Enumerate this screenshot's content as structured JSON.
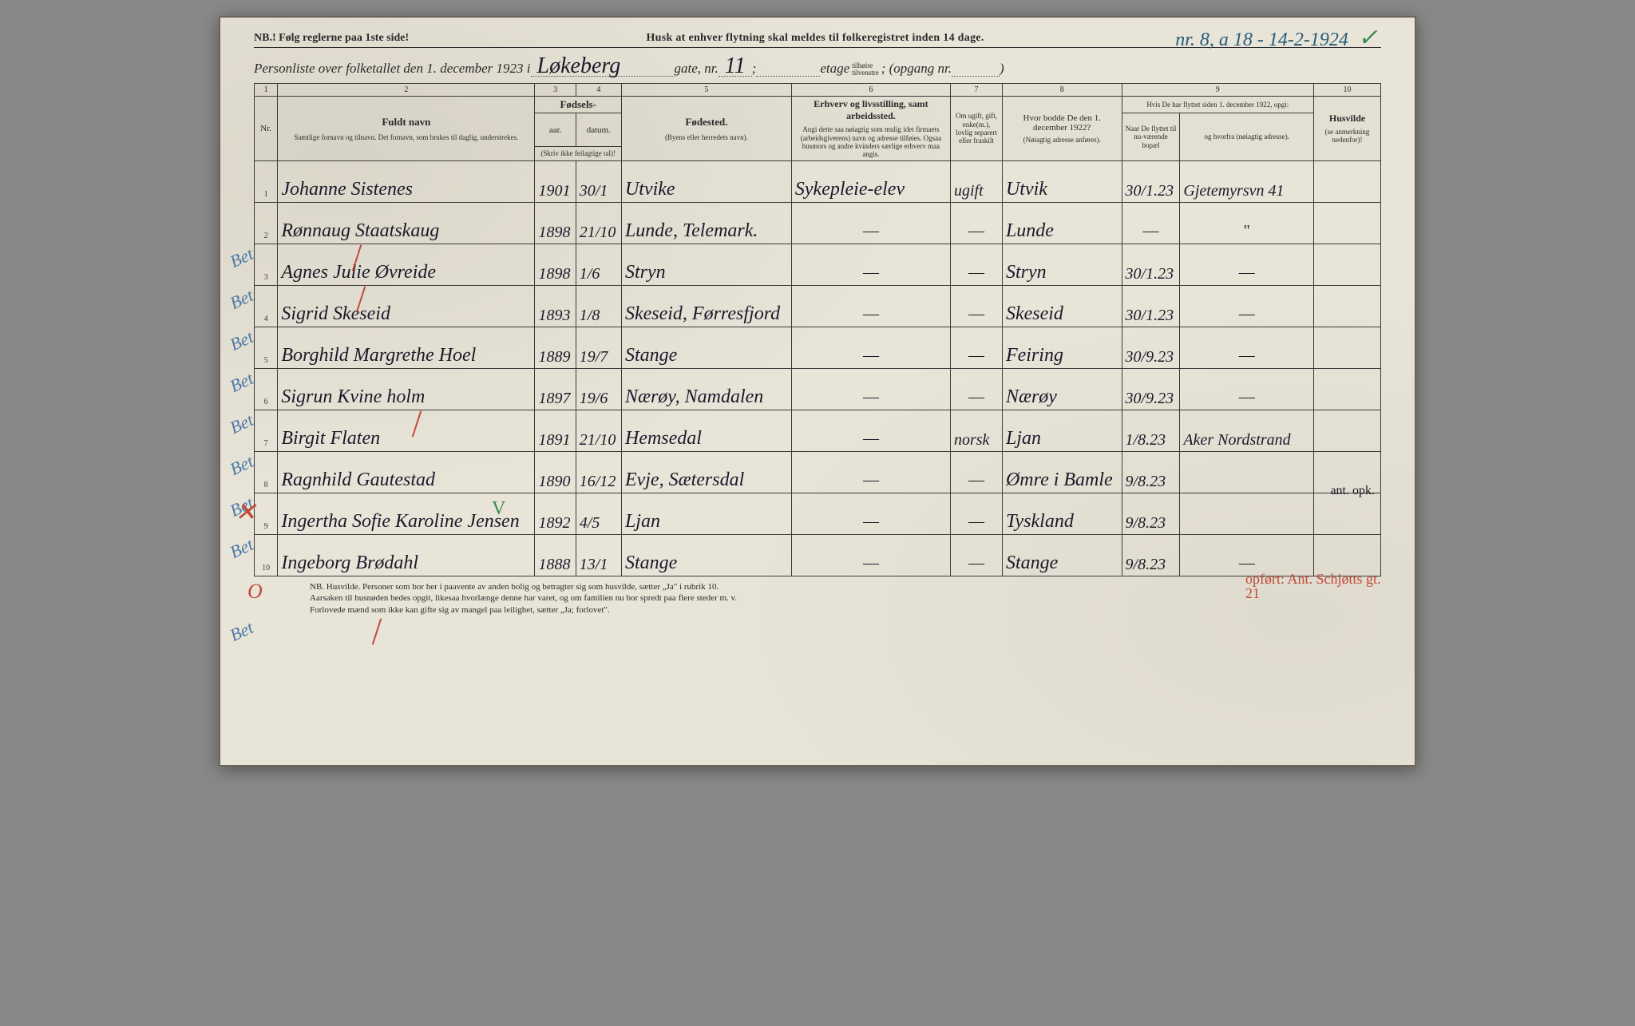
{
  "corner_annotation": "nr. 8, a 18 - 14-2-1924",
  "header": {
    "nb": "NB.! Følg reglerne paa 1ste side!",
    "husk": "Husk at enhver flytning skal meldes til folkeregistret inden 14 dage.",
    "line2_pre": "Personliste over folketallet den 1. december 1923 i",
    "gate_name": "Løkeberg",
    "gate_label": "gate, nr.",
    "gate_nr": "11",
    "semicolon": " ; ",
    "etage_label": "etage",
    "etage_side_top": "tilhøire",
    "etage_side_bot": "tilvenstre",
    "opgang_label": "; (opgang nr.",
    "opgang_close": ")"
  },
  "columns": {
    "nums": [
      "1",
      "2",
      "3",
      "4",
      "5",
      "6",
      "7",
      "8",
      "9",
      "10"
    ],
    "c1": "Nr.",
    "c2_title": "Fuldt navn",
    "c2_sub": "Samtlige fornavn og tilnavn. Det fornavn, som brukes til daglig, understrekes.",
    "c34_title": "Fødsels-",
    "c3": "aar.",
    "c4": "datum.",
    "c34_sub": "(Skriv ikke feilagtige tal)!",
    "c5_title": "Fødested.",
    "c5_sub": "(Byens eller herredets navn).",
    "c6_title": "Erhverv og livsstilling, samt arbeidssted.",
    "c6_sub": "Angi dette saa nøiagtig som mulig idet firmaets (arbeidsgiverens) navn og adresse tilføies. Ogsaa husmors og andre kvinders særlige erhverv maa angis.",
    "c7": "Om ugift, gift, enke(m.), lovlig separert eller fraskilt",
    "c8_title": "Hvor bodde De den 1. december 1922?",
    "c8_sub": "(Nøiagtig adresse anføres).",
    "c9_top": "Hvis De har flyttet siden 1. december 1922, opgi:",
    "c9a": "Naar De flyttet til nu-værende bopæl",
    "c9b": "og hvorfra (nøiagtig adresse).",
    "c10_title": "Husvilde",
    "c10_sub": "(se anmerkning nedenfor)!"
  },
  "rows": [
    {
      "nr": "1",
      "navn": "Johanne Sistenes",
      "aar": "1901",
      "dat": "30/1",
      "fsted": "Utvike",
      "erhverv": "Sykepleie-elev",
      "stand": "ugift",
      "bodde1922": "Utvik",
      "flyt_dato": "30/1.23",
      "flyt_fra": "Gjetemyrsvn 41"
    },
    {
      "nr": "2",
      "navn": "Rønnaug Staatskaug",
      "aar": "1898",
      "dat": "21/10",
      "fsted": "Lunde, Telemark.",
      "erhverv": "—",
      "stand": "—",
      "bodde1922": "Lunde",
      "flyt_dato": "—",
      "flyt_fra": "\""
    },
    {
      "nr": "3",
      "navn": "Agnes Julie Øvreide",
      "aar": "1898",
      "dat": "1/6",
      "fsted": "Stryn",
      "erhverv": "—",
      "stand": "—",
      "bodde1922": "Stryn",
      "flyt_dato": "30/1.23",
      "flyt_fra": "—"
    },
    {
      "nr": "4",
      "navn": "Sigrid Skeseid",
      "aar": "1893",
      "dat": "1/8",
      "fsted": "Skeseid, Førresfjord",
      "erhverv": "—",
      "stand": "—",
      "bodde1922": "Skeseid",
      "flyt_dato": "30/1.23",
      "flyt_fra": "—"
    },
    {
      "nr": "5",
      "navn": "Borghild Margrethe Hoel",
      "aar": "1889",
      "dat": "19/7",
      "fsted": "Stange",
      "erhverv": "—",
      "stand": "—",
      "bodde1922": "Feiring",
      "flyt_dato": "30/9.23",
      "flyt_fra": "—"
    },
    {
      "nr": "6",
      "navn": "Sigrun Kvine holm",
      "aar": "1897",
      "dat": "19/6",
      "fsted": "Nærøy, Namdalen",
      "erhverv": "—",
      "stand": "—",
      "bodde1922": "Nærøy",
      "flyt_dato": "30/9.23",
      "flyt_fra": "—"
    },
    {
      "nr": "7",
      "navn": "Birgit Flaten",
      "aar": "1891",
      "dat": "21/10",
      "fsted": "Hemsedal",
      "erhverv": "—",
      "stand": "norsk",
      "bodde1922": "Ljan",
      "flyt_dato": "1/8.23",
      "flyt_fra": "Aker Nordstrand"
    },
    {
      "nr": "8",
      "navn": "Ragnhild Gautestad",
      "aar": "1890",
      "dat": "16/12",
      "fsted": "Evje, Sætersdal",
      "erhverv": "—",
      "stand": "—",
      "bodde1922": "Ømre i Bamle",
      "flyt_dato": "9/8.23",
      "flyt_fra": ""
    },
    {
      "nr": "9",
      "navn": "Ingertha Sofie Karoline Jensen",
      "aar": "1892",
      "dat": "4/5",
      "fsted": "Ljan",
      "erhverv": "—",
      "stand": "—",
      "bodde1922": "Tyskland",
      "flyt_dato": "9/8.23",
      "flyt_fra": ""
    },
    {
      "nr": "10",
      "navn": "Ingeborg Brødahl",
      "aar": "1888",
      "dat": "13/1",
      "fsted": "Stange",
      "erhverv": "—",
      "stand": "—",
      "bodde1922": "Stange",
      "flyt_dato": "9/8.23",
      "flyt_fra": "—"
    }
  ],
  "margin_notes": {
    "left_bet": "Bet",
    "row7_side": "ant. opk.",
    "row9_red": "opført: Ant. Schjøtts gt. 21"
  },
  "footer": {
    "l1": "NB. Husvilde. Personer som bor her i paavente av anden bolig og betragter sig som husvilde, sætter „Ja\" i rubrik 10.",
    "l2": "Aarsaken til husnøden bedes opgit, likesaa hvorlænge denne har varet, og om familien nu bor spredt paa flere steder m. v.",
    "l3": "Forlovede mænd som ikke kan gifte sig av mangel paa leilighet, sætter „Ja; forlovet\"."
  },
  "colors": {
    "paper": "#e8e4d8",
    "ink": "#2a2a2a",
    "handwriting": "#1a1a2a",
    "blue_pencil": "#4a7aa8",
    "red_pencil": "#c24a3a",
    "green_pencil": "#3a8a4a"
  }
}
